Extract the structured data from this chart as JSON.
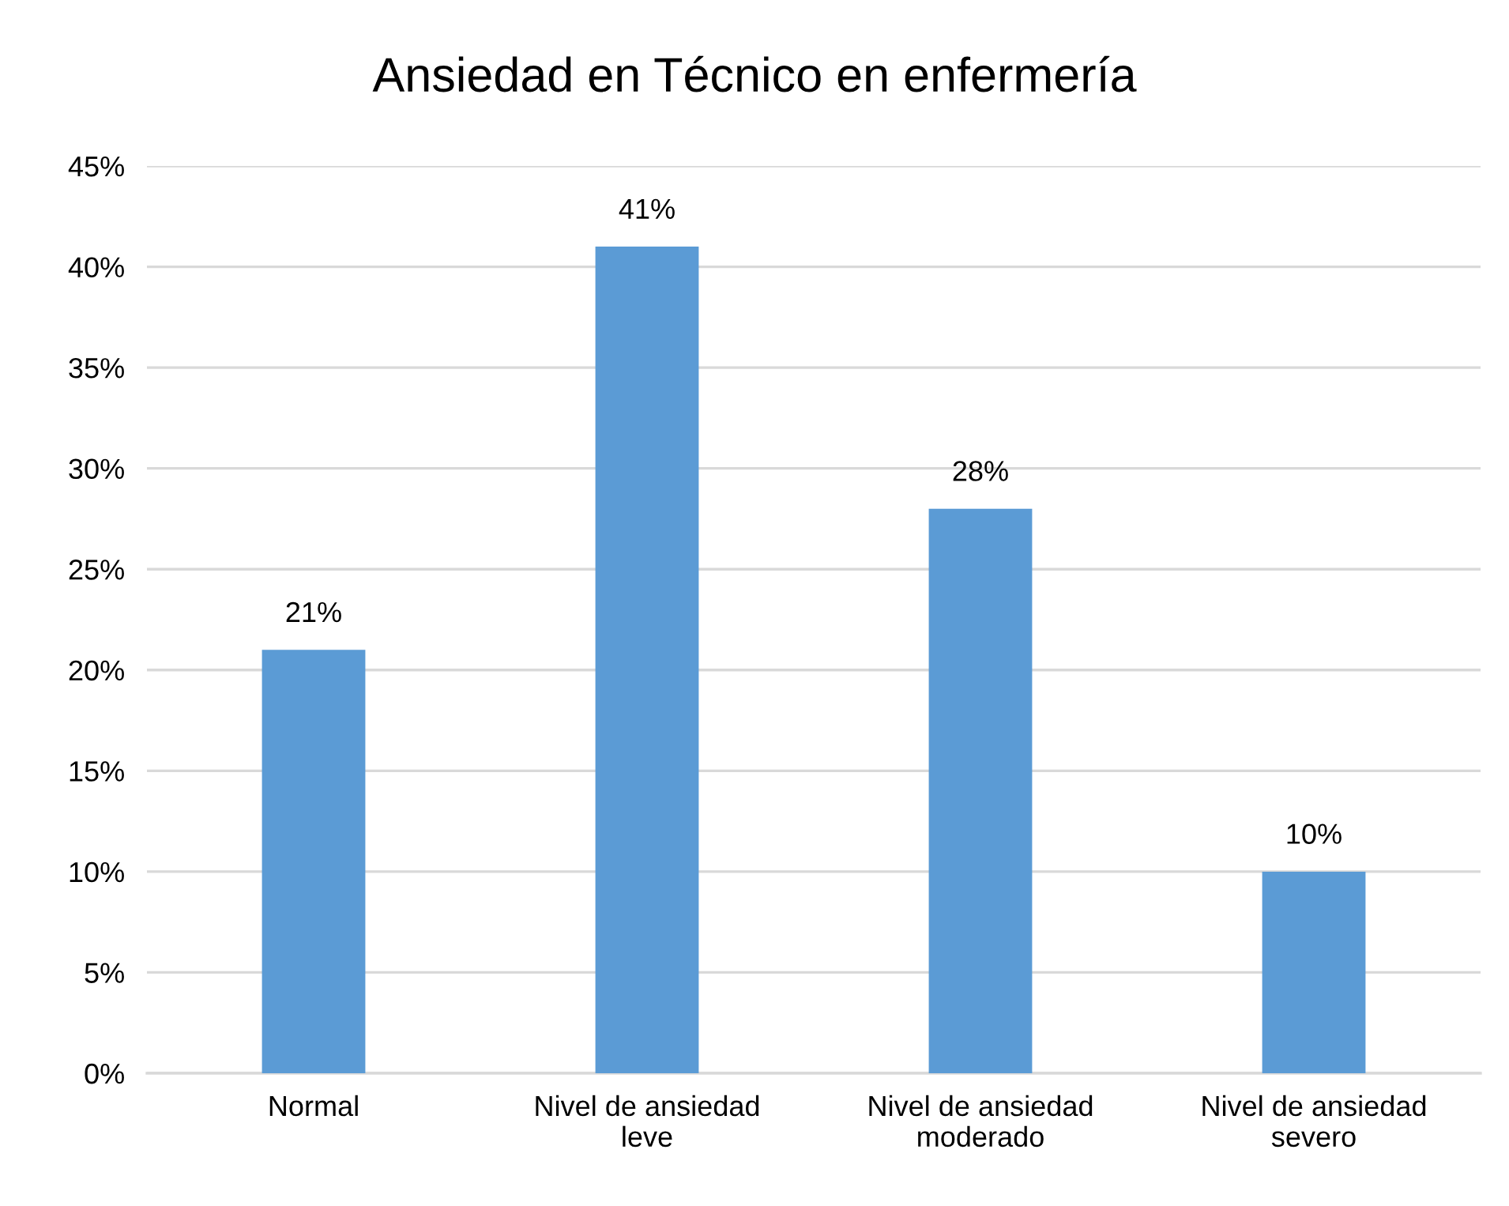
{
  "chart_data": {
    "type": "bar",
    "title": "Ansiedad en Técnico en enfermería",
    "categories": [
      "Normal",
      "Nivel de ansiedad\nleve",
      "Nivel de ansiedad\nmoderado",
      "Nivel de ansiedad\nsevero"
    ],
    "values": [
      21,
      41,
      28,
      10
    ],
    "value_labels": [
      "21%",
      "41%",
      "28%",
      "10%"
    ],
    "color": "#5b9bd5",
    "ylim": [
      0,
      45
    ],
    "yticks": [
      {
        "value": 0,
        "label": "0%"
      },
      {
        "value": 5,
        "label": "5%"
      },
      {
        "value": 10,
        "label": "10%"
      },
      {
        "value": 15,
        "label": "15%"
      },
      {
        "value": 20,
        "label": "20%"
      },
      {
        "value": 25,
        "label": "25%"
      },
      {
        "value": 30,
        "label": "30%"
      },
      {
        "value": 35,
        "label": "35%"
      },
      {
        "value": 40,
        "label": "40%"
      },
      {
        "value": 45,
        "label": "45%"
      }
    ],
    "grid": "y"
  }
}
